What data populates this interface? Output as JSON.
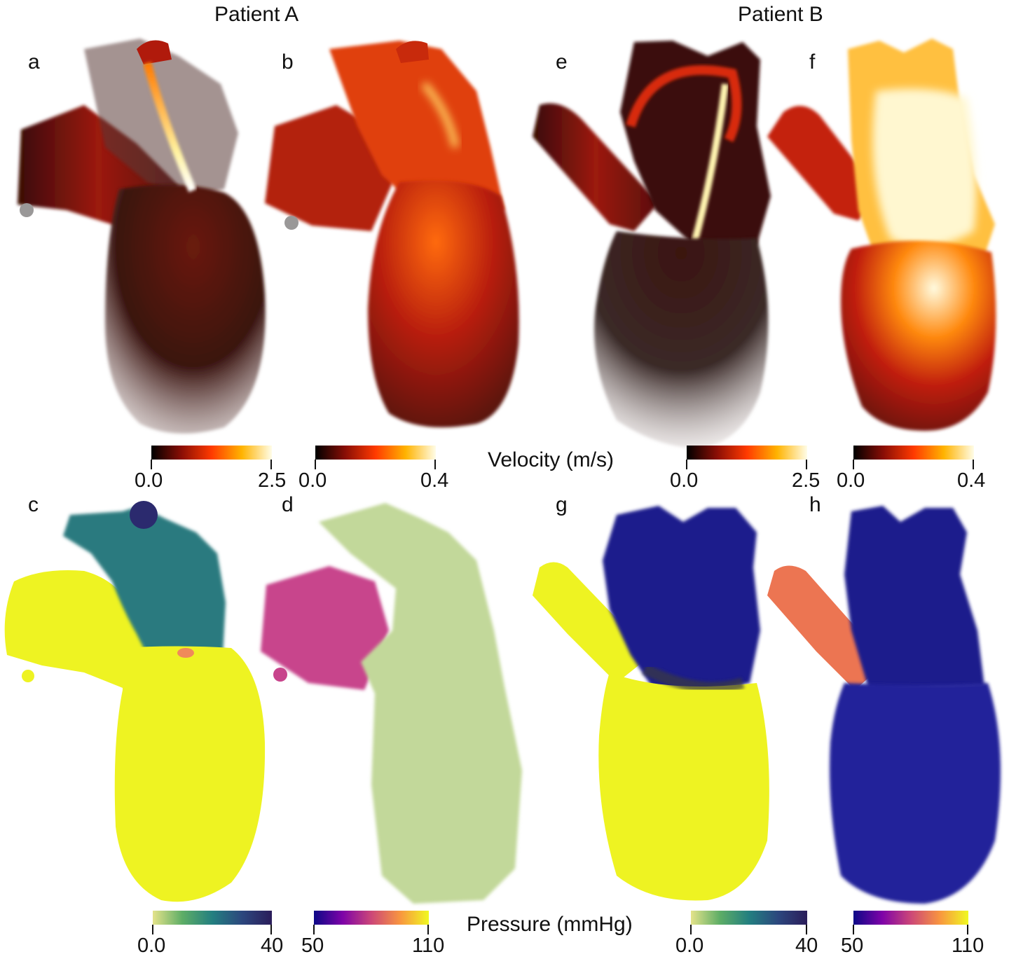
{
  "titles": {
    "patient_a": "Patient A",
    "patient_b": "Patient B"
  },
  "panel_letters": [
    "a",
    "b",
    "e",
    "f",
    "c",
    "d",
    "g",
    "h"
  ],
  "colorbars": {
    "velocity_label": "Velocity (m/s)",
    "pressure_label": "Pressure (mmHg)",
    "velocity": [
      {
        "min": "0.0",
        "max": "2.5"
      },
      {
        "min": "0.0",
        "max": "0.4"
      },
      {
        "min": "0.0",
        "max": "2.5"
      },
      {
        "min": "0.0",
        "max": "0.4"
      }
    ],
    "pressure": [
      {
        "min": "0.0",
        "max": "40"
      },
      {
        "min": "50",
        "max": "110"
      },
      {
        "min": "0.0",
        "max": "40"
      },
      {
        "min": "50",
        "max": "110"
      }
    ]
  },
  "colors": {
    "hot_dark": "#1a0505",
    "hot_red": "#b31f0f",
    "hot_orange": "#ff7a00",
    "hot_white": "#fffbe0",
    "yellow": "#eef322",
    "teal": "#2a7a7f",
    "green_pale": "#c2d89a",
    "magenta": "#c8448c",
    "navy": "#1a1a8c",
    "salmon": "#ec7552"
  }
}
